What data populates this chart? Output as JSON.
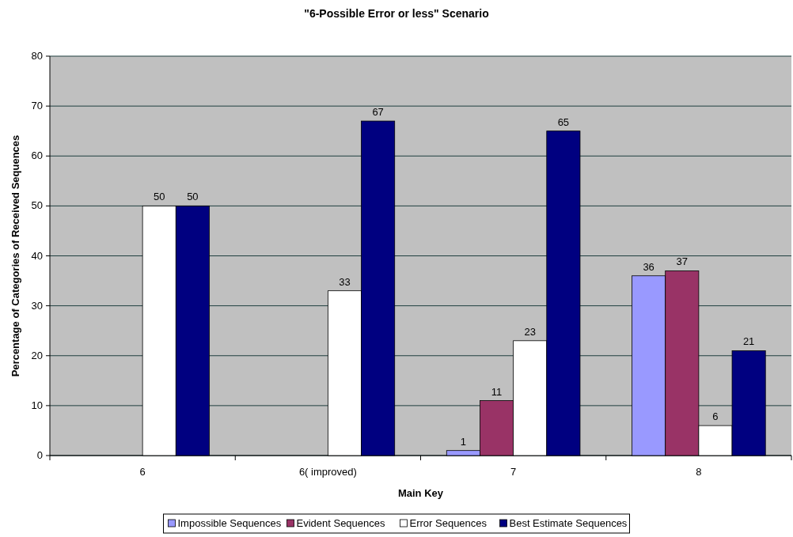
{
  "chart_data": {
    "type": "bar",
    "title": "\"6-Possible Error or less\" Scenario",
    "xlabel": "Main Key",
    "ylabel": "Percentage of Categories of Received Sequences",
    "categories": [
      "6",
      "6( improved)",
      "7",
      "8"
    ],
    "series": [
      {
        "name": "Impossible Sequences",
        "color": "#9999ff",
        "values": [
          null,
          null,
          1,
          36
        ]
      },
      {
        "name": "Evident Sequences",
        "color": "#993366",
        "values": [
          null,
          null,
          11,
          37
        ]
      },
      {
        "name": "Error Sequences",
        "color": "#ffffff",
        "values": [
          50,
          33,
          23,
          6
        ]
      },
      {
        "name": "Best Estimate Sequences",
        "color": "#000080",
        "values": [
          50,
          67,
          65,
          21
        ]
      }
    ],
    "ylim": [
      0,
      80
    ],
    "yticks": [
      0,
      10,
      20,
      30,
      40,
      50,
      60,
      70,
      80
    ],
    "grid": "y",
    "legend": "bottom",
    "data_labels": true
  }
}
